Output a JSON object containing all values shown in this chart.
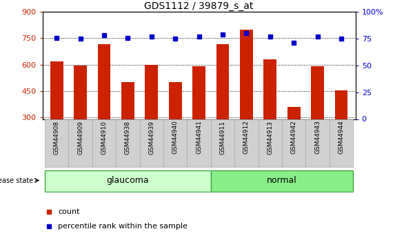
{
  "title": "GDS1112 / 39879_s_at",
  "samples": [
    "GSM44908",
    "GSM44909",
    "GSM44910",
    "GSM44938",
    "GSM44939",
    "GSM44940",
    "GSM44941",
    "GSM44911",
    "GSM44912",
    "GSM44913",
    "GSM44942",
    "GSM44943",
    "GSM44944"
  ],
  "counts": [
    620,
    595,
    715,
    500,
    600,
    500,
    590,
    715,
    800,
    630,
    360,
    590,
    455
  ],
  "percentiles": [
    76,
    75,
    78,
    76,
    77,
    75,
    77,
    79,
    80,
    77,
    71,
    77,
    75
  ],
  "groups": [
    "glaucoma",
    "glaucoma",
    "glaucoma",
    "glaucoma",
    "glaucoma",
    "glaucoma",
    "glaucoma",
    "normal",
    "normal",
    "normal",
    "normal",
    "normal",
    "normal"
  ],
  "ylim_left": [
    290,
    900
  ],
  "ylim_right": [
    0,
    100
  ],
  "yticks_left": [
    300,
    450,
    600,
    750,
    900
  ],
  "yticks_right": [
    0,
    25,
    50,
    75,
    100
  ],
  "bar_color": "#cc2200",
  "dot_color": "#0000cc",
  "glaucoma_color": "#ccffcc",
  "normal_color": "#88ee88",
  "label_bg_color": "#d0d0d0",
  "label_edge_color": "#aaaaaa"
}
